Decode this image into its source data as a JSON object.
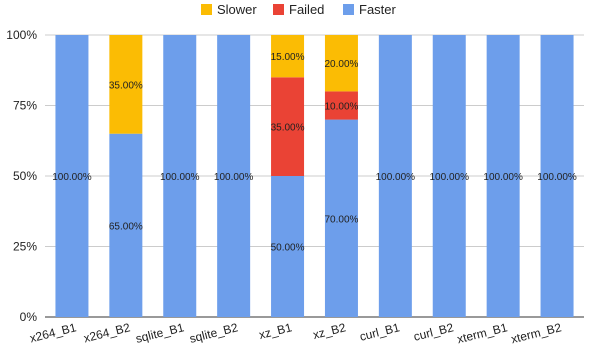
{
  "chart_data": {
    "type": "bar",
    "stacked": true,
    "normalized": true,
    "title": "",
    "xlabel": "",
    "ylabel": "",
    "ylim": [
      0,
      1
    ],
    "y_ticks": [
      "0%",
      "25%",
      "50%",
      "75%",
      "100%"
    ],
    "y_tick_values": [
      0,
      0.25,
      0.5,
      0.75,
      1
    ],
    "grid": true,
    "legend_position": "top",
    "categories": [
      "x264_B1",
      "x264_B2",
      "sqlite_B1",
      "sqlite_B2",
      "xz_B1",
      "xz_B2",
      "curl_B1",
      "curl_B2",
      "xterm_B1",
      "xterm_B2"
    ],
    "stack_order": [
      "Faster",
      "Failed",
      "Slower"
    ],
    "series": [
      {
        "name": "Slower",
        "color": "#fbbc04",
        "values": [
          0,
          0.35,
          0,
          0,
          0.15,
          0.2,
          0,
          0,
          0,
          0
        ],
        "labels": [
          "",
          "35.00%",
          "",
          "",
          "15.00%",
          "20.00%",
          "",
          "",
          "",
          ""
        ]
      },
      {
        "name": "Failed",
        "color": "#ea4335",
        "values": [
          0,
          0,
          0,
          0,
          0.35,
          0.1,
          0,
          0,
          0,
          0
        ],
        "labels": [
          "",
          "",
          "",
          "",
          "35.00%",
          "10.00%",
          "",
          "",
          "",
          ""
        ]
      },
      {
        "name": "Faster",
        "color": "#6d9eeb",
        "values": [
          1.0,
          0.65,
          1.0,
          1.0,
          0.5,
          0.7,
          1.0,
          1.0,
          1.0,
          1.0
        ],
        "labels": [
          "100.00%",
          "65.00%",
          "100.00%",
          "100.00%",
          "50.00%",
          "70.00%",
          "100.00%",
          "100.00%",
          "100.00%",
          "100.00%"
        ]
      }
    ]
  }
}
